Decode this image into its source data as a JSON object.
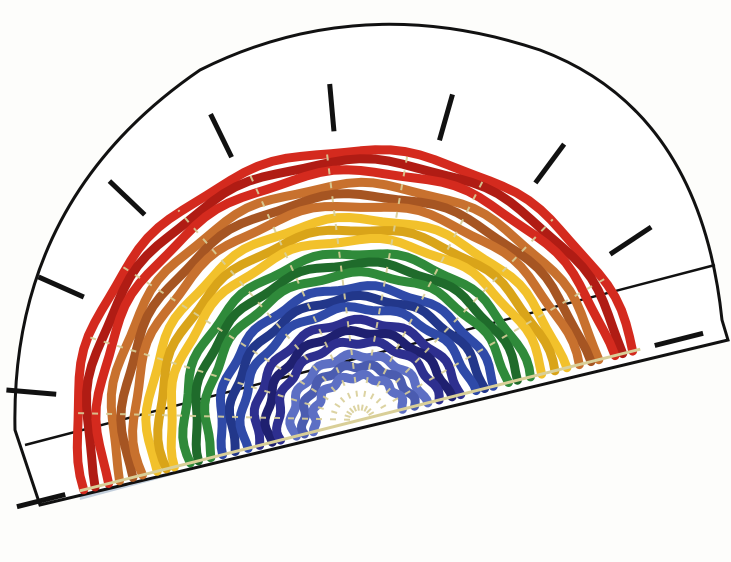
{
  "illustration": {
    "subject": "",
    "frame": {
      "fill_color": "#ffffff",
      "outline_color": "#111111",
      "shadow_color": "#b9c7d6",
      "segment_count": 9
    },
    "arcs": [
      {
        "color": "#d42a1e",
        "shade": "#b01c14"
      },
      {
        "color": "#c8712e",
        "shade": "#a65522"
      },
      {
        "color": "#f2c12b",
        "shade": "#d9a419"
      },
      {
        "color": "#2f8a3a",
        "shade": "#1f6b2b"
      },
      {
        "color": "#2f4aa8",
        "shade": "#22378a"
      },
      {
        "color": "#2e2f8f",
        "shade": "#1f2070"
      },
      {
        "color": "#5d6fc4",
        "shade": "#4b5cb0"
      }
    ],
    "weave_color": "#d9cf98",
    "strands_per_arc": 3
  }
}
